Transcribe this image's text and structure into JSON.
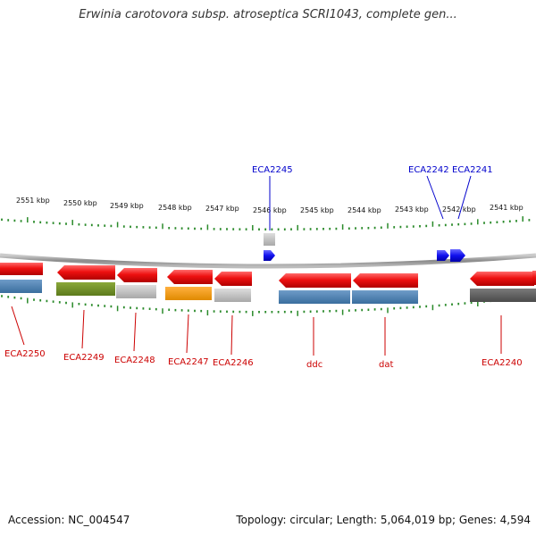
{
  "title": "Erwinia carotovora subsp. atroseptica SCRI1043, complete gen...",
  "footer": {
    "accession": "Accession: NC_004547",
    "summary": "Topology: circular; Length: 5,064,019 bp; Genes: 4,594"
  },
  "colors": {
    "forward_label": "#0000cc",
    "reverse_label": "#cc0000",
    "tick": "#2a8a2a",
    "backbone": "#999999",
    "gene_forward": "#1010ee",
    "gene_reverse": "#ee1111"
  },
  "scale": {
    "labels": [
      "2551 kbp",
      "2550 kbp",
      "2549 kbp",
      "2548 kbp",
      "2547 kbp",
      "2546 kbp",
      "2545 kbp",
      "2544 kbp",
      "2543 kbp",
      "2542 kbp",
      "2541 kbp"
    ]
  },
  "genes": {
    "forward": [
      {
        "id": "ECA2245",
        "label": "ECA2245"
      },
      {
        "id": "ECA2242",
        "label": "ECA2242"
      },
      {
        "id": "ECA2241",
        "label": "ECA2241"
      }
    ],
    "reverse": [
      {
        "id": "ECA2250",
        "label": "ECA2250"
      },
      {
        "id": "ECA2249",
        "label": "ECA2249"
      },
      {
        "id": "ECA2248",
        "label": "ECA2248"
      },
      {
        "id": "ECA2247",
        "label": "ECA2247"
      },
      {
        "id": "ECA2246",
        "label": "ECA2246"
      },
      {
        "id": "ddc",
        "label": "ddc"
      },
      {
        "id": "dat",
        "label": "dat"
      },
      {
        "id": "ECA2240",
        "label": "ECA2240"
      }
    ]
  }
}
